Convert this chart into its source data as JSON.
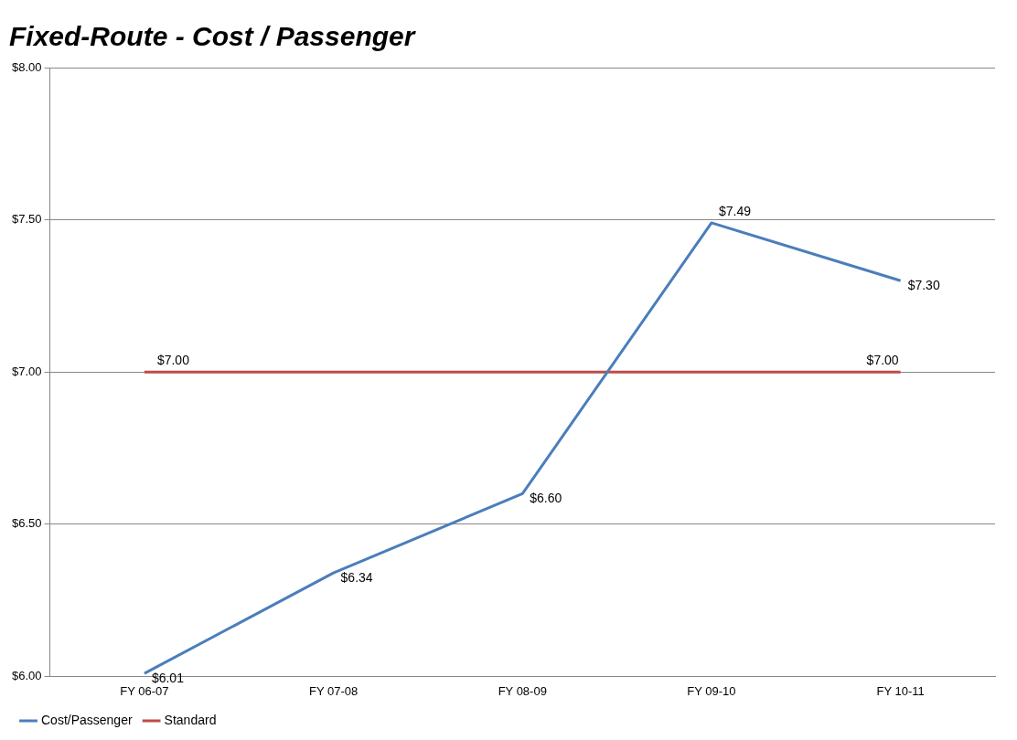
{
  "chart_data": {
    "type": "line",
    "title": "Fixed-Route - Cost / Passenger",
    "categories": [
      "FY 06-07",
      "FY 07-08",
      "FY 08-09",
      "FY 09-10",
      "FY 10-11"
    ],
    "series": [
      {
        "name": "Cost/Passenger",
        "color": "#4a7ebb",
        "values": [
          6.01,
          6.34,
          6.6,
          7.49,
          7.3
        ],
        "value_labels": [
          "$6.01",
          "$6.34",
          "$6.60",
          "$7.49",
          "$7.30"
        ]
      },
      {
        "name": "Standard",
        "color": "#be4b48",
        "values": [
          7,
          7,
          7,
          7,
          7
        ],
        "value_labels": [
          "$7.00",
          null,
          null,
          null,
          "$7.00"
        ]
      }
    ],
    "ylim": [
      6,
      8
    ],
    "yticks": [
      {
        "value": 6,
        "label": "$6.00"
      },
      {
        "value": 6.5,
        "label": "$6.50"
      },
      {
        "value": 7,
        "label": "$7.00"
      },
      {
        "value": 7.5,
        "label": "$7.50"
      },
      {
        "value": 8,
        "label": "$8.00"
      }
    ],
    "grid": "y",
    "legend": "bottom left",
    "marker": "none",
    "line_style": "solid"
  }
}
